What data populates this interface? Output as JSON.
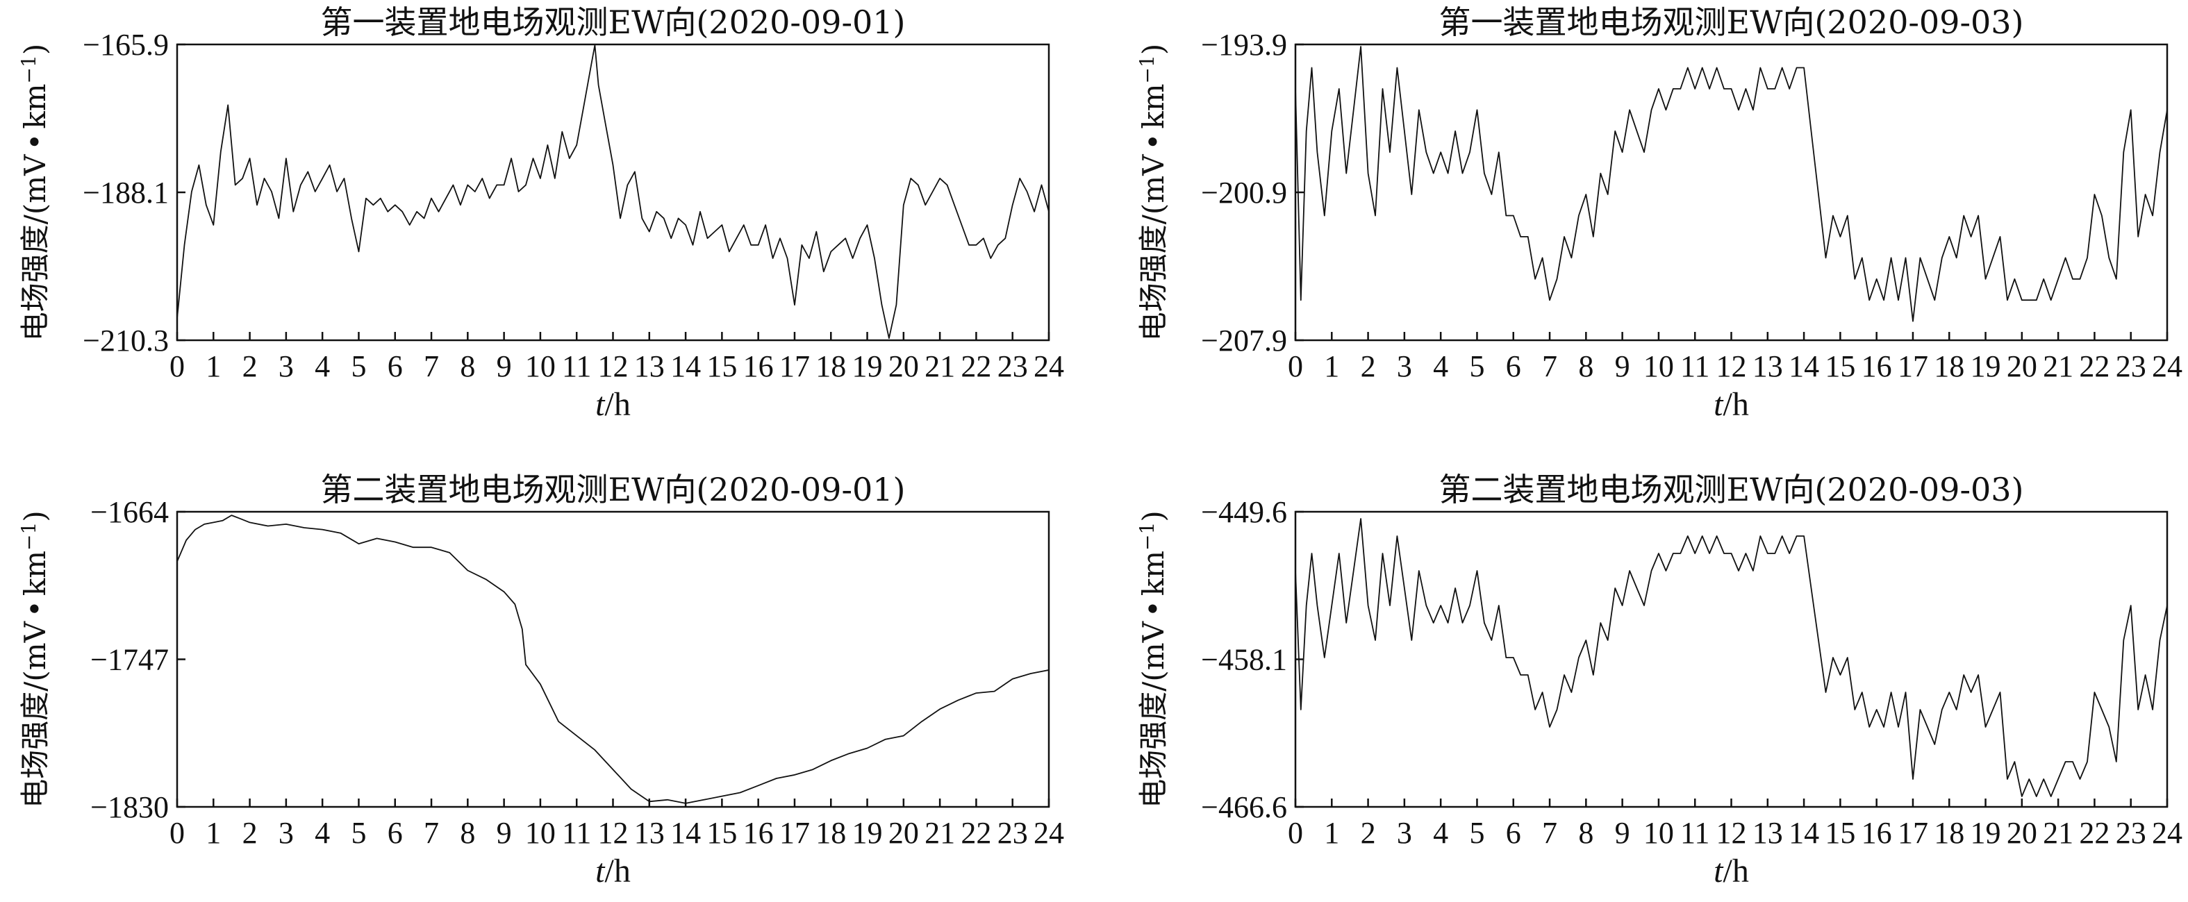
{
  "chart_data": [
    {
      "type": "line",
      "title": "第一装置地电场观测EW向(2020-09-01)",
      "ylabel": "电场强度/(mV·km⁻¹)",
      "ylabel_unit_prefix": "电场强度/(mV",
      "ylabel_unit_suffix": "km",
      "ylabel_exp": "−1",
      "ylabel_close": ")",
      "xlabel_var": "t",
      "xlabel_unit": "/h",
      "xlim": [
        0,
        24
      ],
      "ylim": [
        -210.3,
        -165.9
      ],
      "yticks": [
        "−165.9",
        "−188.1",
        "−210.3"
      ],
      "xticks": [
        "0",
        "1",
        "2",
        "3",
        "4",
        "5",
        "6",
        "7",
        "8",
        "9",
        "10",
        "11",
        "12",
        "13",
        "14",
        "15",
        "16",
        "17",
        "18",
        "19",
        "20",
        "21",
        "22",
        "23",
        "24"
      ],
      "series": [
        {
          "x": [
            0,
            0.2,
            0.4,
            0.6,
            0.8,
            1.0,
            1.2,
            1.4,
            1.6,
            1.8,
            2.0,
            2.2,
            2.4,
            2.6,
            2.8,
            3.0,
            3.2,
            3.4,
            3.6,
            3.8,
            4.0,
            4.2,
            4.4,
            4.6,
            4.8,
            5.0,
            5.2,
            5.4,
            5.6,
            5.8,
            6.0,
            6.2,
            6.4,
            6.6,
            6.8,
            7.0,
            7.2,
            7.4,
            7.6,
            7.8,
            8.0,
            8.2,
            8.4,
            8.6,
            8.8,
            9.0,
            9.2,
            9.4,
            9.6,
            9.8,
            10.0,
            10.2,
            10.4,
            10.6,
            10.8,
            11.0,
            11.2,
            11.4,
            11.5,
            11.6,
            11.8,
            12.0,
            12.2,
            12.4,
            12.6,
            12.8,
            13.0,
            13.2,
            13.4,
            13.6,
            13.8,
            14.0,
            14.2,
            14.4,
            14.6,
            14.8,
            15.0,
            15.2,
            15.4,
            15.6,
            15.8,
            16.0,
            16.2,
            16.4,
            16.6,
            16.8,
            17.0,
            17.2,
            17.4,
            17.6,
            17.8,
            18.0,
            18.2,
            18.4,
            18.6,
            18.8,
            19.0,
            19.2,
            19.4,
            19.6,
            19.8,
            20.0,
            20.2,
            20.4,
            20.6,
            20.8,
            21.0,
            21.2,
            21.4,
            21.6,
            21.8,
            22.0,
            22.2,
            22.4,
            22.6,
            22.8,
            23.0,
            23.2,
            23.4,
            23.6,
            23.8,
            24.0
          ],
          "y": [
            -207,
            -196,
            -188,
            -184,
            -190,
            -193,
            -182,
            -175,
            -187,
            -186,
            -183,
            -190,
            -186,
            -188,
            -192,
            -183,
            -191,
            -187,
            -185,
            -188,
            -186,
            -184,
            -188,
            -186,
            -192,
            -197,
            -189,
            -190,
            -189,
            -191,
            -190,
            -191,
            -193,
            -191,
            -192,
            -189,
            -191,
            -189,
            -187,
            -190,
            -187,
            -188,
            -186,
            -189,
            -187,
            -187,
            -183,
            -188,
            -187,
            -183,
            -186,
            -181,
            -186,
            -179,
            -183,
            -181,
            -175,
            -169,
            -166,
            -172,
            -178,
            -184,
            -192,
            -187,
            -185,
            -192,
            -194,
            -191,
            -192,
            -195,
            -192,
            -193,
            -196,
            -191,
            -195,
            -194,
            -193,
            -197,
            -195,
            -193,
            -196,
            -196,
            -193,
            -198,
            -195,
            -198,
            -205,
            -196,
            -198,
            -194,
            -200,
            -197,
            -196,
            -195,
            -198,
            -195,
            -193,
            -198,
            -205,
            -210,
            -205,
            -190,
            -186,
            -187,
            -190,
            -188,
            -186,
            -187,
            -190,
            -193,
            -196,
            -196,
            -195,
            -198,
            -196,
            -195,
            -190,
            -186,
            -188,
            -191,
            -187,
            -191
          ]
        }
      ]
    },
    {
      "type": "line",
      "title": "第一装置地电场观测EW向(2020-09-03)",
      "ylabel": "电场强度/(mV·km⁻¹)",
      "ylabel_unit_prefix": "电场强度/(mV",
      "ylabel_unit_suffix": "km",
      "ylabel_exp": "−1",
      "ylabel_close": ")",
      "xlabel_var": "t",
      "xlabel_unit": "/h",
      "xlim": [
        0,
        24
      ],
      "ylim": [
        -207.9,
        -193.9
      ],
      "yticks": [
        "−193.9",
        "−200.9",
        "−207.9"
      ],
      "xticks": [
        "0",
        "1",
        "2",
        "3",
        "4",
        "5",
        "6",
        "7",
        "8",
        "9",
        "10",
        "11",
        "12",
        "13",
        "14",
        "15",
        "16",
        "17",
        "18",
        "19",
        "20",
        "21",
        "22",
        "23",
        "24"
      ],
      "series": [
        {
          "x": [
            0,
            0.15,
            0.3,
            0.45,
            0.6,
            0.8,
            1.0,
            1.2,
            1.4,
            1.6,
            1.8,
            2.0,
            2.2,
            2.4,
            2.6,
            2.8,
            3.0,
            3.2,
            3.4,
            3.6,
            3.8,
            4.0,
            4.2,
            4.4,
            4.6,
            4.8,
            5.0,
            5.2,
            5.4,
            5.6,
            5.8,
            6.0,
            6.2,
            6.4,
            6.6,
            6.8,
            7.0,
            7.2,
            7.4,
            7.6,
            7.8,
            8.0,
            8.2,
            8.4,
            8.6,
            8.8,
            9.0,
            9.2,
            9.4,
            9.6,
            9.8,
            10.0,
            10.2,
            10.4,
            10.6,
            10.8,
            11.0,
            11.2,
            11.4,
            11.6,
            11.8,
            12.0,
            12.2,
            12.4,
            12.6,
            12.8,
            13.0,
            13.2,
            13.4,
            13.6,
            13.8,
            14.0,
            14.2,
            14.4,
            14.6,
            14.8,
            15.0,
            15.2,
            15.4,
            15.6,
            15.8,
            16.0,
            16.2,
            16.4,
            16.6,
            16.8,
            17.0,
            17.2,
            17.4,
            17.6,
            17.8,
            18.0,
            18.2,
            18.4,
            18.6,
            18.8,
            19.0,
            19.2,
            19.4,
            19.6,
            19.8,
            20.0,
            20.2,
            20.4,
            20.6,
            20.8,
            21.0,
            21.2,
            21.4,
            21.6,
            21.8,
            22.0,
            22.2,
            22.4,
            22.6,
            22.8,
            23.0,
            23.2,
            23.4,
            23.6,
            23.8,
            24.0
          ],
          "y": [
            -196,
            -206,
            -198,
            -195,
            -199,
            -202,
            -198,
            -196,
            -200,
            -197,
            -194,
            -200,
            -202,
            -196,
            -199,
            -195,
            -198,
            -201,
            -197,
            -199,
            -200,
            -199,
            -200,
            -198,
            -200,
            -199,
            -197,
            -200,
            -201,
            -199,
            -202,
            -202,
            -203,
            -203,
            -205,
            -204,
            -206,
            -205,
            -203,
            -204,
            -202,
            -201,
            -203,
            -200,
            -201,
            -198,
            -199,
            -197,
            -198,
            -199,
            -197,
            -196,
            -197,
            -196,
            -196,
            -195,
            -196,
            -195,
            -196,
            -195,
            -196,
            -196,
            -197,
            -196,
            -197,
            -195,
            -196,
            -196,
            -195,
            -196,
            -195,
            -195,
            -198,
            -201,
            -204,
            -202,
            -203,
            -202,
            -205,
            -204,
            -206,
            -205,
            -206,
            -204,
            -206,
            -204,
            -207,
            -204,
            -205,
            -206,
            -204,
            -203,
            -204,
            -202,
            -203,
            -202,
            -205,
            -204,
            -203,
            -206,
            -205,
            -206,
            -206,
            -206,
            -205,
            -206,
            -205,
            -204,
            -205,
            -205,
            -204,
            -201,
            -202,
            -204,
            -205,
            -199,
            -197,
            -203,
            -201,
            -202,
            -199,
            -197
          ]
        }
      ]
    },
    {
      "type": "line",
      "title": "第二装置地电场观测EW向(2020-09-01)",
      "ylabel": "电场强度/(mV·km⁻¹)",
      "ylabel_unit_prefix": "电场强度/(mV",
      "ylabel_unit_suffix": "km",
      "ylabel_exp": "−1",
      "ylabel_close": ")",
      "xlabel_var": "t",
      "xlabel_unit": "/h",
      "xlim": [
        0,
        24
      ],
      "ylim": [
        -1830,
        -1664
      ],
      "yticks": [
        "−1664",
        "−1747",
        "−1830"
      ],
      "xticks": [
        "0",
        "1",
        "2",
        "3",
        "4",
        "5",
        "6",
        "7",
        "8",
        "9",
        "10",
        "11",
        "12",
        "13",
        "14",
        "15",
        "16",
        "17",
        "18",
        "19",
        "20",
        "21",
        "22",
        "23",
        "24"
      ],
      "series": [
        {
          "x": [
            0,
            0.25,
            0.5,
            0.75,
            1.0,
            1.25,
            1.5,
            1.75,
            2.0,
            2.5,
            3.0,
            3.5,
            4.0,
            4.5,
            5.0,
            5.5,
            6.0,
            6.5,
            7.0,
            7.5,
            8.0,
            8.5,
            9.0,
            9.3,
            9.5,
            9.6,
            10.0,
            10.5,
            11.0,
            11.5,
            12.0,
            12.5,
            13.0,
            13.5,
            14.0,
            14.5,
            15.0,
            15.5,
            16.0,
            16.5,
            17.0,
            17.5,
            18.0,
            18.5,
            19.0,
            19.5,
            20.0,
            20.5,
            21.0,
            21.5,
            22.0,
            22.5,
            23.0,
            23.5,
            24.0
          ],
          "y": [
            -1692,
            -1680,
            -1674,
            -1671,
            -1670,
            -1669,
            -1666,
            -1668,
            -1670,
            -1672,
            -1671,
            -1673,
            -1674,
            -1676,
            -1682,
            -1679,
            -1681,
            -1684,
            -1684,
            -1687,
            -1697,
            -1702,
            -1709,
            -1716,
            -1730,
            -1750,
            -1761,
            -1782,
            -1790,
            -1798,
            -1809,
            -1820,
            -1827,
            -1826,
            -1828,
            -1826,
            -1824,
            -1822,
            -1818,
            -1814,
            -1812,
            -1809,
            -1804,
            -1800,
            -1797,
            -1792,
            -1790,
            -1782,
            -1775,
            -1770,
            -1766,
            -1765,
            -1758,
            -1755,
            -1753
          ]
        }
      ]
    },
    {
      "type": "line",
      "title": "第二装置地电场观测EW向(2020-09-03)",
      "ylabel": "电场强度/(mV·km⁻¹)",
      "ylabel_unit_prefix": "电场强度/(mV",
      "ylabel_unit_suffix": "km",
      "ylabel_exp": "−1",
      "ylabel_close": ")",
      "xlabel_var": "t",
      "xlabel_unit": "/h",
      "xlim": [
        0,
        24
      ],
      "ylim": [
        -466.6,
        -449.6
      ],
      "yticks": [
        "−449.6",
        "−458.1",
        "−466.6"
      ],
      "xticks": [
        "0",
        "1",
        "2",
        "3",
        "4",
        "5",
        "6",
        "7",
        "8",
        "9",
        "10",
        "11",
        "12",
        "13",
        "14",
        "15",
        "16",
        "17",
        "18",
        "19",
        "20",
        "21",
        "22",
        "23",
        "24"
      ],
      "series": [
        {
          "x": [
            0,
            0.15,
            0.3,
            0.45,
            0.6,
            0.8,
            1.0,
            1.2,
            1.4,
            1.6,
            1.8,
            2.0,
            2.2,
            2.4,
            2.6,
            2.8,
            3.0,
            3.2,
            3.4,
            3.6,
            3.8,
            4.0,
            4.2,
            4.4,
            4.6,
            4.8,
            5.0,
            5.2,
            5.4,
            5.6,
            5.8,
            6.0,
            6.2,
            6.4,
            6.6,
            6.8,
            7.0,
            7.2,
            7.4,
            7.6,
            7.8,
            8.0,
            8.2,
            8.4,
            8.6,
            8.8,
            9.0,
            9.2,
            9.4,
            9.6,
            9.8,
            10.0,
            10.2,
            10.4,
            10.6,
            10.8,
            11.0,
            11.2,
            11.4,
            11.6,
            11.8,
            12.0,
            12.2,
            12.4,
            12.6,
            12.8,
            13.0,
            13.2,
            13.4,
            13.6,
            13.8,
            14.0,
            14.2,
            14.4,
            14.6,
            14.8,
            15.0,
            15.2,
            15.4,
            15.6,
            15.8,
            16.0,
            16.2,
            16.4,
            16.6,
            16.8,
            17.0,
            17.2,
            17.4,
            17.6,
            17.8,
            18.0,
            18.2,
            18.4,
            18.6,
            18.8,
            19.0,
            19.2,
            19.4,
            19.6,
            19.8,
            20.0,
            20.2,
            20.4,
            20.6,
            20.8,
            21.0,
            21.2,
            21.4,
            21.6,
            21.8,
            22.0,
            22.2,
            22.4,
            22.6,
            22.8,
            23.0,
            23.2,
            23.4,
            23.6,
            23.8,
            24.0
          ],
          "y": [
            -453,
            -461,
            -455,
            -452,
            -455,
            -458,
            -455,
            -452,
            -456,
            -453,
            -450,
            -455,
            -457,
            -452,
            -455,
            -451,
            -454,
            -457,
            -453,
            -455,
            -456,
            -455,
            -456,
            -454,
            -456,
            -455,
            -453,
            -456,
            -457,
            -455,
            -458,
            -458,
            -459,
            -459,
            -461,
            -460,
            -462,
            -461,
            -459,
            -460,
            -458,
            -457,
            -459,
            -456,
            -457,
            -454,
            -455,
            -453,
            -454,
            -455,
            -453,
            -452,
            -453,
            -452,
            -452,
            -451,
            -452,
            -451,
            -452,
            -451,
            -452,
            -452,
            -453,
            -452,
            -453,
            -451,
            -452,
            -452,
            -451,
            -452,
            -451,
            -451,
            -454,
            -457,
            -460,
            -458,
            -459,
            -458,
            -461,
            -460,
            -462,
            -461,
            -462,
            -460,
            -462,
            -460,
            -465,
            -461,
            -462,
            -463,
            -461,
            -460,
            -461,
            -459,
            -460,
            -459,
            -462,
            -461,
            -460,
            -465,
            -464,
            -466,
            -465,
            -466,
            -465,
            -466,
            -465,
            -464,
            -464,
            -465,
            -464,
            -460,
            -461,
            -462,
            -464,
            -457,
            -455,
            -461,
            -459,
            -461,
            -457,
            -455
          ]
        }
      ]
    }
  ]
}
